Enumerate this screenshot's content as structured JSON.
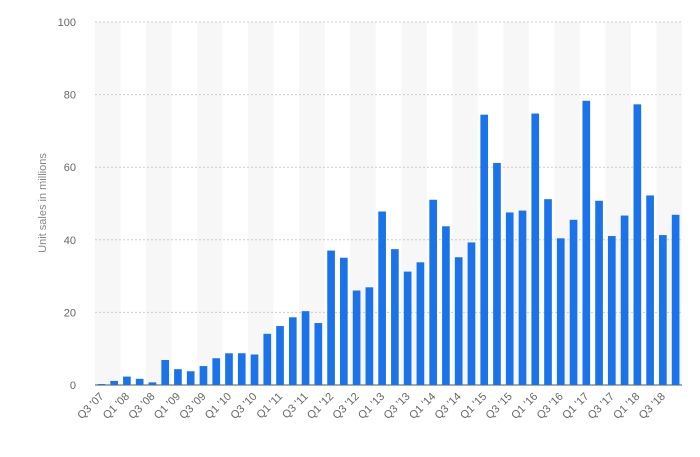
{
  "chart_data": {
    "type": "bar",
    "title": "",
    "xlabel": "",
    "ylabel": "Unit sales in millions",
    "ylim": [
      0,
      100
    ],
    "yticks": [
      0,
      20,
      40,
      60,
      80,
      100
    ],
    "grid": true,
    "bar_color": "#1a73e8",
    "band_color": "#f7f7f7",
    "grid_color": "#cccccc",
    "categories": [
      "Q3 '07",
      "Q4 '07",
      "Q1 '08",
      "Q2 '08",
      "Q3 '08",
      "Q4 '08",
      "Q1 '09",
      "Q2 '09",
      "Q3 '09",
      "Q4 '09",
      "Q1 '10",
      "Q2 '10",
      "Q3 '10",
      "Q4 '10",
      "Q1 '11",
      "Q2 '11",
      "Q3 '11",
      "Q4 '11",
      "Q1 '12",
      "Q2 '12",
      "Q3 '12",
      "Q4 '12",
      "Q1 '13",
      "Q2 '13",
      "Q3 '13",
      "Q4 '13",
      "Q1 '14",
      "Q2 '14",
      "Q3 '14",
      "Q4 '14",
      "Q1 '15",
      "Q2 '15",
      "Q3 '15",
      "Q4 '15",
      "Q1 '16",
      "Q2 '16",
      "Q3 '16",
      "Q4 '16",
      "Q1 '17",
      "Q2 '17",
      "Q3 '17",
      "Q4 '17",
      "Q1 '18",
      "Q2 '18",
      "Q3 '18",
      "Q4 '18"
    ],
    "values": [
      0.27,
      1.12,
      2.32,
      1.7,
      0.72,
      6.89,
      4.36,
      3.79,
      5.21,
      7.37,
      8.74,
      8.75,
      8.4,
      14.1,
      16.24,
      18.65,
      20.34,
      17.07,
      37.04,
      35.06,
      26.03,
      26.91,
      47.79,
      37.43,
      31.24,
      33.8,
      51.03,
      43.72,
      35.2,
      39.27,
      74.47,
      61.17,
      47.53,
      48.05,
      74.78,
      51.19,
      40.4,
      45.51,
      78.29,
      50.76,
      41.03,
      46.68,
      77.32,
      52.22,
      41.3,
      46.89
    ],
    "labeled_tick_every": 2
  }
}
